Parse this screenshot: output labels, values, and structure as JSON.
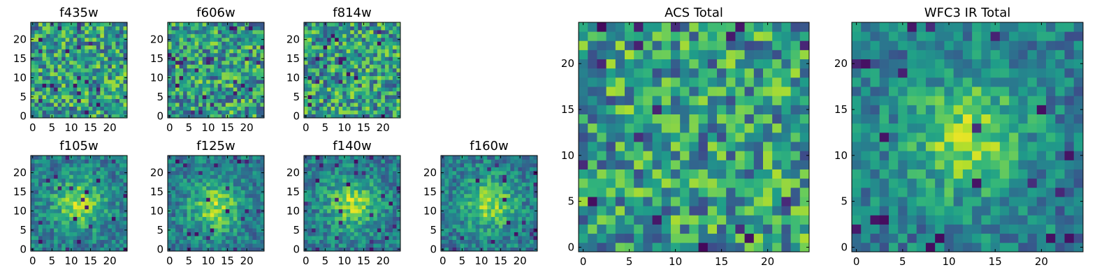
{
  "chart_data": [
    {
      "id": "f435w",
      "type": "heatmap",
      "title": "f435w",
      "n": 25,
      "xticks": [
        0,
        5,
        10,
        15,
        20
      ],
      "yticks": [
        0,
        5,
        10,
        15,
        20
      ],
      "xlim": [
        -0.5,
        24.5
      ],
      "ylim": [
        -0.5,
        24.5
      ],
      "colormap": "viridis",
      "pattern": "noise",
      "seed": 11
    },
    {
      "id": "f606w",
      "type": "heatmap",
      "title": "f606w",
      "n": 25,
      "xticks": [
        0,
        5,
        10,
        15,
        20
      ],
      "yticks": [
        0,
        5,
        10,
        15,
        20
      ],
      "xlim": [
        -0.5,
        24.5
      ],
      "ylim": [
        -0.5,
        24.5
      ],
      "colormap": "viridis",
      "pattern": "noise",
      "seed": 23
    },
    {
      "id": "f814w",
      "type": "heatmap",
      "title": "f814w",
      "n": 25,
      "xticks": [
        0,
        5,
        10,
        15,
        20
      ],
      "yticks": [
        0,
        5,
        10,
        15,
        20
      ],
      "xlim": [
        -0.5,
        24.5
      ],
      "ylim": [
        -0.5,
        24.5
      ],
      "colormap": "viridis",
      "pattern": "noise",
      "seed": 37
    },
    {
      "id": "f105w",
      "type": "heatmap",
      "title": "f105w",
      "n": 25,
      "xticks": [
        0,
        5,
        10,
        15,
        20
      ],
      "yticks": [
        0,
        5,
        10,
        15,
        20
      ],
      "xlim": [
        -0.5,
        24.5
      ],
      "ylim": [
        -0.5,
        24.5
      ],
      "colormap": "viridis",
      "pattern": "source",
      "center": [
        12,
        12
      ],
      "seed": 41
    },
    {
      "id": "f125w",
      "type": "heatmap",
      "title": "f125w",
      "n": 25,
      "xticks": [
        0,
        5,
        10,
        15,
        20
      ],
      "yticks": [
        0,
        5,
        10,
        15,
        20
      ],
      "xlim": [
        -0.5,
        24.5
      ],
      "ylim": [
        -0.5,
        24.5
      ],
      "colormap": "viridis",
      "pattern": "source",
      "center": [
        12,
        11
      ],
      "seed": 53
    },
    {
      "id": "f140w",
      "type": "heatmap",
      "title": "f140w",
      "n": 25,
      "xticks": [
        0,
        5,
        10,
        15,
        20
      ],
      "yticks": [
        0,
        5,
        10,
        15,
        20
      ],
      "xlim": [
        -0.5,
        24.5
      ],
      "ylim": [
        -0.5,
        24.5
      ],
      "colormap": "viridis",
      "pattern": "source",
      "center": [
        12,
        12
      ],
      "seed": 67
    },
    {
      "id": "f160w",
      "type": "heatmap",
      "title": "f160w",
      "n": 25,
      "xticks": [
        0,
        5,
        10,
        15,
        20
      ],
      "yticks": [
        0,
        5,
        10,
        15,
        20
      ],
      "xlim": [
        -0.5,
        24.5
      ],
      "ylim": [
        -0.5,
        24.5
      ],
      "colormap": "viridis",
      "pattern": "source",
      "center": [
        12,
        12
      ],
      "seed": 79
    },
    {
      "id": "acs_total",
      "type": "heatmap",
      "title": "ACS Total",
      "n": 25,
      "xticks": [
        0,
        5,
        10,
        15,
        20
      ],
      "yticks": [
        0,
        5,
        10,
        15,
        20
      ],
      "xlim": [
        -0.5,
        24.5
      ],
      "ylim": [
        -0.5,
        24.5
      ],
      "colormap": "viridis",
      "pattern": "noise",
      "seed": 97
    },
    {
      "id": "wfc3_ir_total",
      "type": "heatmap",
      "title": "WFC3 IR Total",
      "n": 25,
      "xticks": [
        0,
        5,
        10,
        15,
        20
      ],
      "yticks": [
        0,
        5,
        10,
        15,
        20
      ],
      "xlim": [
        -0.5,
        24.5
      ],
      "ylim": [
        -0.5,
        24.5
      ],
      "colormap": "viridis",
      "pattern": "source",
      "center": [
        12,
        12
      ],
      "seed": 113
    }
  ]
}
